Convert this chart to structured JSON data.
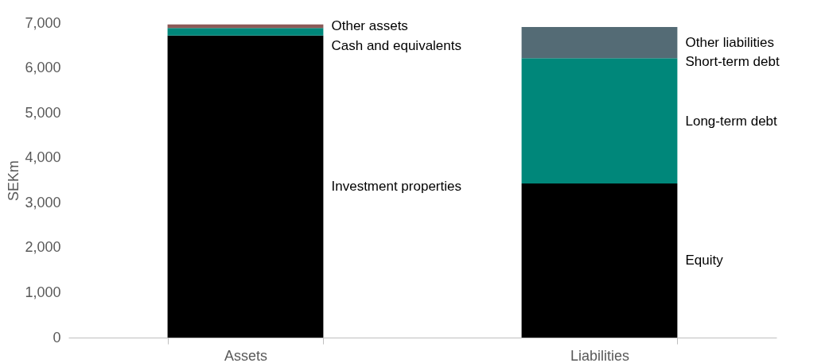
{
  "chart_data": {
    "type": "bar",
    "stacked": true,
    "ylabel": "SEKm",
    "categories": [
      "Assets",
      "Liabilities"
    ],
    "ylim": [
      0,
      7000
    ],
    "yticks": [
      {
        "value": 0,
        "label": "0"
      },
      {
        "value": 1000,
        "label": "1,000"
      },
      {
        "value": 2000,
        "label": "2,000"
      },
      {
        "value": 3000,
        "label": "3,000"
      },
      {
        "value": 4000,
        "label": "4,000"
      },
      {
        "value": 5000,
        "label": "5,000"
      },
      {
        "value": 6000,
        "label": "6,000"
      },
      {
        "value": 7000,
        "label": "7,000"
      }
    ],
    "grid": false,
    "legend": false,
    "series": [
      {
        "name": "Investment properties",
        "color": "#000000",
        "values": [
          6720,
          null
        ]
      },
      {
        "name": "Cash and equivalents",
        "color": "#00877a",
        "values": [
          170,
          null
        ]
      },
      {
        "name": "Other assets",
        "color": "#8c5a58",
        "values": [
          80,
          null
        ]
      },
      {
        "name": "Equity",
        "color": "#000000",
        "values": [
          null,
          3430
        ]
      },
      {
        "name": "Long-term debt",
        "color": "#00877a",
        "values": [
          null,
          2740
        ]
      },
      {
        "name": "Short-term debt",
        "color": "#00877a",
        "values": [
          null,
          50
        ]
      },
      {
        "name": "Other liabilities",
        "color": "#546b75",
        "values": [
          null,
          690
        ]
      }
    ]
  }
}
